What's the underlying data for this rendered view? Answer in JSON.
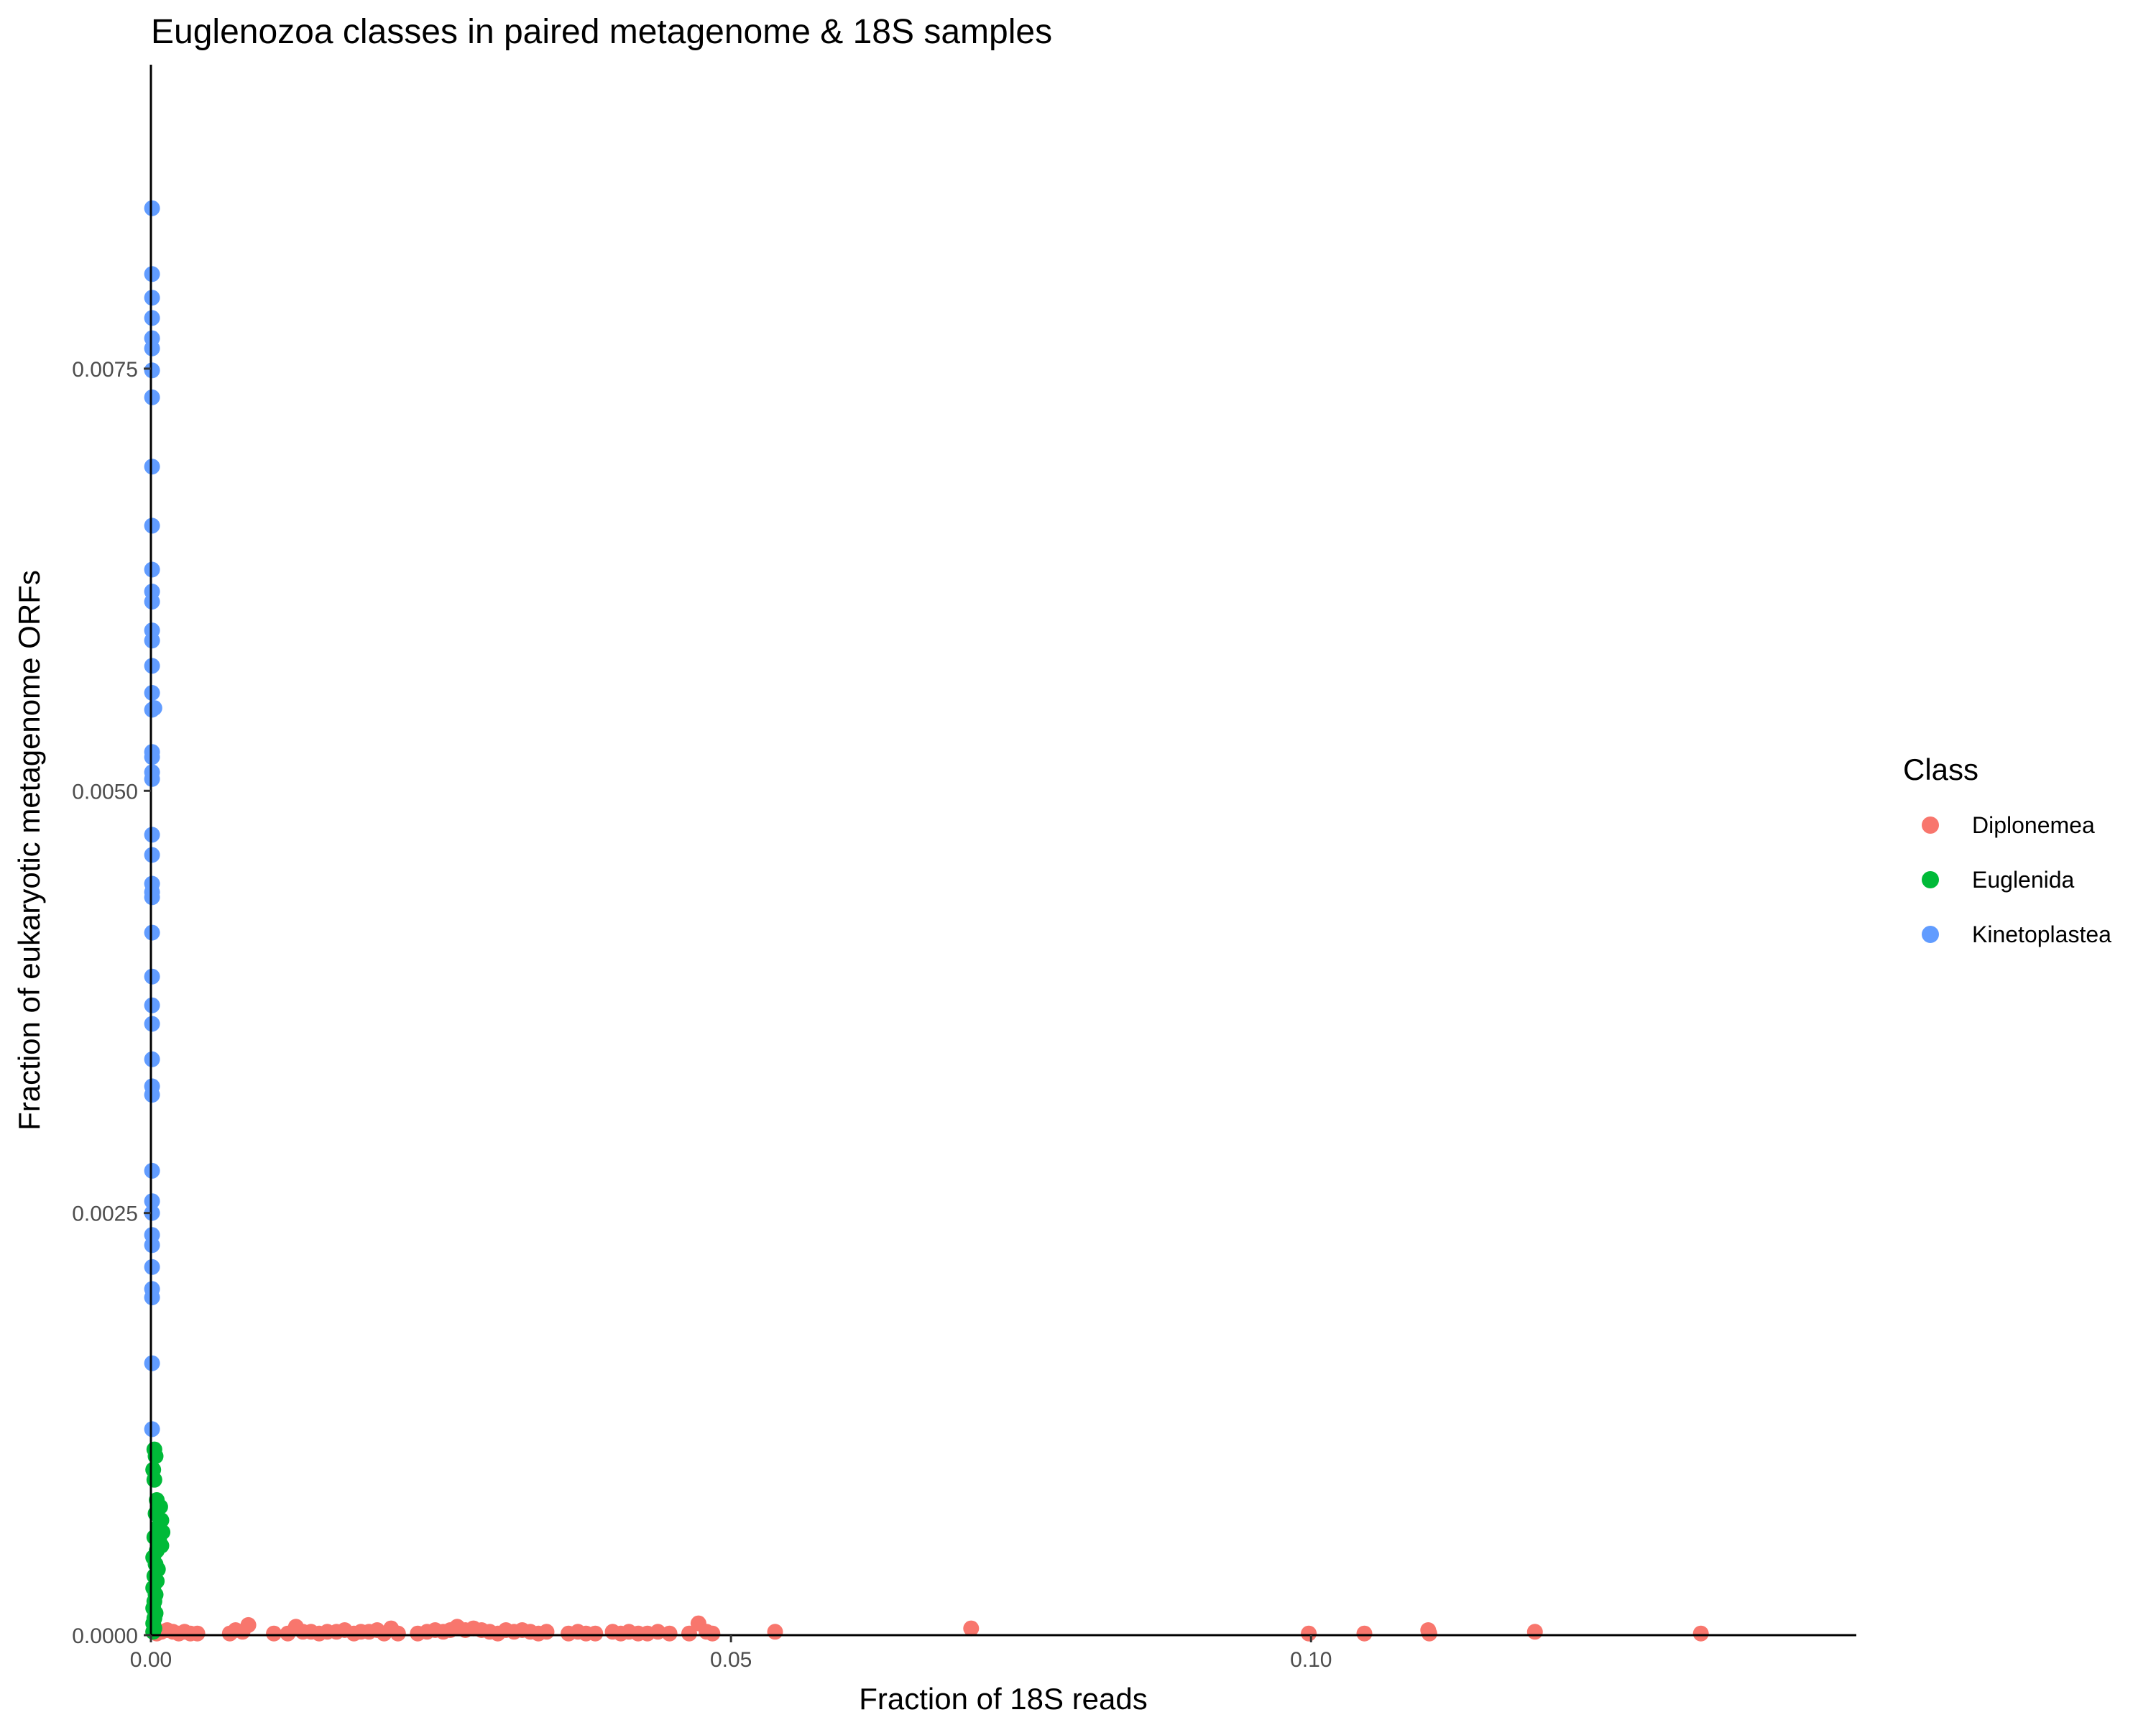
{
  "chart_data": {
    "type": "scatter",
    "title": "Euglenozoa classes in paired metagenome & 18S samples",
    "xlabel": "Fraction of 18S reads",
    "ylabel": "Fraction of eukaryotic metagenome ORFs",
    "xlim": [
      0,
      0.147
    ],
    "ylim": [
      0,
      0.0093
    ],
    "x_ticks": [
      0,
      0.05,
      0.1
    ],
    "x_tick_labels": [
      "0.00",
      "0.05",
      "0.10"
    ],
    "y_ticks": [
      0,
      0.0025,
      0.005,
      0.0075
    ],
    "y_tick_labels": [
      "0.0000",
      "0.0025",
      "0.0050",
      "0.0075"
    ],
    "grid": false,
    "legend": {
      "title": "Class",
      "placement": "right",
      "entries": [
        "Diplonemea",
        "Euglenida",
        "Kinetoplastea"
      ]
    },
    "series": [
      {
        "name": "Diplonemea",
        "color": "#F8766D",
        "points": [
          [
            0.0002,
            2e-05
          ],
          [
            0.0005,
            1e-05
          ],
          [
            0.0009,
            2e-05
          ],
          [
            0.0014,
            3e-05
          ],
          [
            0.0019,
            2e-05
          ],
          [
            0.0024,
            1e-05
          ],
          [
            0.0029,
            2e-05
          ],
          [
            0.0034,
            1e-05
          ],
          [
            0.004,
            1e-05
          ],
          [
            0.0068,
            1e-05
          ],
          [
            0.0073,
            3e-05
          ],
          [
            0.0079,
            2e-05
          ],
          [
            0.0084,
            6e-05
          ],
          [
            0.0106,
            1e-05
          ],
          [
            0.0118,
            1e-05
          ],
          [
            0.0125,
            5e-05
          ],
          [
            0.0131,
            2e-05
          ],
          [
            0.0138,
            2e-05
          ],
          [
            0.0145,
            1e-05
          ],
          [
            0.0152,
            2e-05
          ],
          [
            0.016,
            2e-05
          ],
          [
            0.0167,
            3e-05
          ],
          [
            0.0175,
            1e-05
          ],
          [
            0.0181,
            2e-05
          ],
          [
            0.0188,
            2e-05
          ],
          [
            0.0195,
            3e-05
          ],
          [
            0.0201,
            1e-05
          ],
          [
            0.0207,
            4e-05
          ],
          [
            0.0213,
            1e-05
          ],
          [
            0.023,
            1e-05
          ],
          [
            0.0238,
            2e-05
          ],
          [
            0.0245,
            3e-05
          ],
          [
            0.0252,
            2e-05
          ],
          [
            0.0258,
            3e-05
          ],
          [
            0.0264,
            5e-05
          ],
          [
            0.0271,
            3e-05
          ],
          [
            0.0278,
            4e-05
          ],
          [
            0.0285,
            3e-05
          ],
          [
            0.0292,
            2e-05
          ],
          [
            0.0299,
            1e-05
          ],
          [
            0.0306,
            3e-05
          ],
          [
            0.0313,
            2e-05
          ],
          [
            0.032,
            3e-05
          ],
          [
            0.0327,
            2e-05
          ],
          [
            0.0334,
            1e-05
          ],
          [
            0.0341,
            2e-05
          ],
          [
            0.036,
            1e-05
          ],
          [
            0.0368,
            2e-05
          ],
          [
            0.0375,
            1e-05
          ],
          [
            0.0383,
            1e-05
          ],
          [
            0.0398,
            2e-05
          ],
          [
            0.0405,
            1e-05
          ],
          [
            0.0412,
            2e-05
          ],
          [
            0.042,
            1e-05
          ],
          [
            0.0428,
            1e-05
          ],
          [
            0.0437,
            2e-05
          ],
          [
            0.0447,
            1e-05
          ],
          [
            0.0464,
            1e-05
          ],
          [
            0.0472,
            7e-05
          ],
          [
            0.0479,
            2e-05
          ],
          [
            0.0484,
            1e-05
          ],
          [
            0.0538,
            2e-05
          ],
          [
            0.0707,
            4e-05
          ],
          [
            0.0998,
            1e-05
          ],
          [
            0.1046,
            1e-05
          ],
          [
            0.1101,
            3e-05
          ],
          [
            0.1102,
            1e-05
          ],
          [
            0.1193,
            2e-05
          ],
          [
            0.1336,
            1e-05
          ]
        ]
      },
      {
        "name": "Euglenida",
        "color": "#00BA38",
        "points": [
          [
            0.0003,
            0.0011
          ],
          [
            0.0004,
            0.00106
          ],
          [
            0.0002,
            0.00098
          ],
          [
            0.0003,
            0.00092
          ],
          [
            0.0005,
            0.0008
          ],
          [
            0.0008,
            0.00076
          ],
          [
            0.0004,
            0.00072
          ],
          [
            0.0009,
            0.00068
          ],
          [
            0.0006,
            0.00064
          ],
          [
            0.001,
            0.00061
          ],
          [
            0.0003,
            0.00058
          ],
          [
            0.0007,
            0.00056
          ],
          [
            0.0009,
            0.00053
          ],
          [
            0.0005,
            0.0005
          ],
          [
            0.0002,
            0.00046
          ],
          [
            0.0004,
            0.00042
          ],
          [
            0.0006,
            0.00039
          ],
          [
            0.0003,
            0.00035
          ],
          [
            0.0005,
            0.00032
          ],
          [
            0.0002,
            0.00028
          ],
          [
            0.0004,
            0.00024
          ],
          [
            0.0003,
            0.0002
          ],
          [
            0.0002,
            0.00016
          ],
          [
            0.0004,
            0.00013
          ],
          [
            0.0003,
            0.0001
          ],
          [
            0.0002,
            7e-05
          ],
          [
            0.0003,
            4e-05
          ],
          [
            0.0002,
            2e-05
          ]
        ]
      },
      {
        "name": "Kinetoplastea",
        "color": "#619CFF",
        "points": [
          [
            0.0001,
            0.00845
          ],
          [
            0.0001,
            0.00806
          ],
          [
            0.0001,
            0.00792
          ],
          [
            0.0001,
            0.0078
          ],
          [
            0.0001,
            0.00768
          ],
          [
            0.0001,
            0.00762
          ],
          [
            0.0001,
            0.00749
          ],
          [
            0.0001,
            0.00733
          ],
          [
            0.0001,
            0.00692
          ],
          [
            0.0001,
            0.00657
          ],
          [
            0.0001,
            0.00631
          ],
          [
            0.0001,
            0.00618
          ],
          [
            0.0001,
            0.00612
          ],
          [
            0.0001,
            0.00595
          ],
          [
            0.0001,
            0.00589
          ],
          [
            0.0001,
            0.00574
          ],
          [
            0.0001,
            0.00558
          ],
          [
            0.0001,
            0.00548
          ],
          [
            0.0003,
            0.00549
          ],
          [
            0.0001,
            0.00523
          ],
          [
            0.0001,
            0.0052
          ],
          [
            0.0001,
            0.00511
          ],
          [
            0.0001,
            0.00507
          ],
          [
            0.0001,
            0.00474
          ],
          [
            0.0001,
            0.00462
          ],
          [
            0.0001,
            0.00445
          ],
          [
            0.0001,
            0.0044
          ],
          [
            0.0001,
            0.00437
          ],
          [
            0.0001,
            0.00416
          ],
          [
            0.0001,
            0.0039
          ],
          [
            0.0001,
            0.00373
          ],
          [
            0.0001,
            0.00362
          ],
          [
            0.0001,
            0.00341
          ],
          [
            0.0001,
            0.00325
          ],
          [
            0.0001,
            0.0032
          ],
          [
            0.0001,
            0.00275
          ],
          [
            0.0001,
            0.00257
          ],
          [
            0.0001,
            0.0025
          ],
          [
            0.0001,
            0.00237
          ],
          [
            0.0001,
            0.00231
          ],
          [
            0.0001,
            0.00218
          ],
          [
            0.0001,
            0.00205
          ],
          [
            0.0001,
            0.002
          ],
          [
            0.0001,
            0.00161
          ],
          [
            0.0001,
            0.00122
          ]
        ]
      }
    ]
  }
}
